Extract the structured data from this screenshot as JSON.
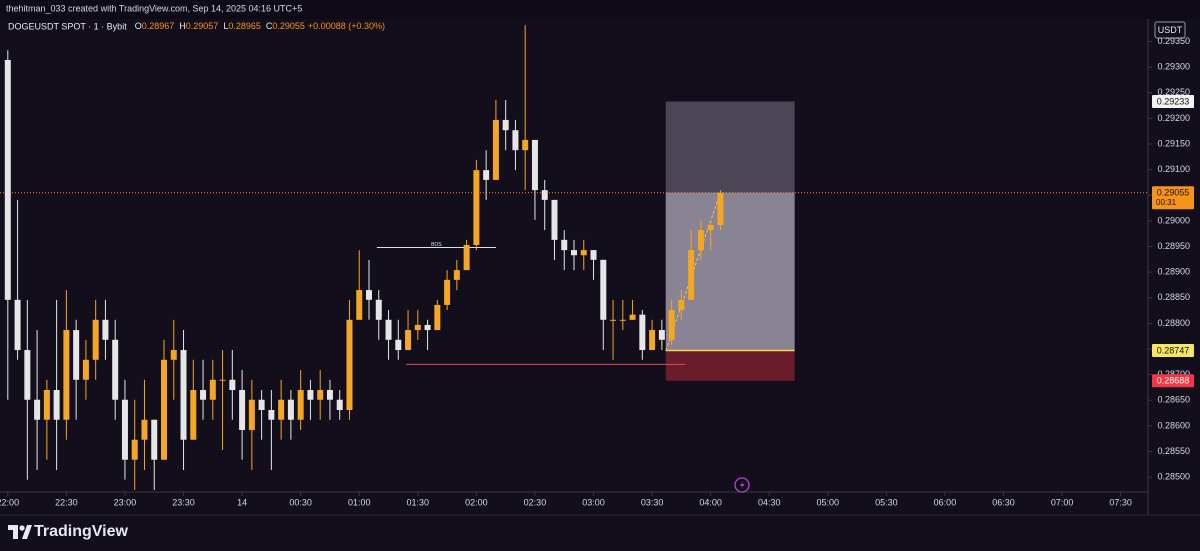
{
  "header": {
    "caption": "thehitman_033 created with TradingView.com, Sep 14, 2025 04:16 UTC+5"
  },
  "chart_data": {
    "type": "candlestick",
    "title": "DOGEUSDT SPOT · 1 · Bybit",
    "ohlc_legend": [
      {
        "label": "O",
        "value": 0.28967
      },
      {
        "label": "H",
        "value": 0.29057
      },
      {
        "label": "L",
        "value": 0.28965
      },
      {
        "label": "C",
        "value": 0.29055
      }
    ],
    "change": "+0.00088 (+0.30%)",
    "currency": "USDT",
    "up_color": "#f5a623",
    "down_color": "#e6e6e6",
    "x": [
      0,
      5,
      10,
      15,
      20,
      25,
      30,
      35,
      40,
      45,
      50,
      55,
      60,
      65,
      70,
      75,
      80,
      85,
      90,
      95,
      100,
      105,
      110,
      115,
      120,
      125,
      130,
      135,
      140,
      145,
      150,
      155,
      160,
      165,
      170,
      175,
      180,
      185,
      190,
      195,
      200,
      205,
      210,
      215,
      220,
      225,
      230,
      235,
      240,
      245,
      250,
      255,
      260,
      265,
      270,
      275,
      280,
      285,
      290,
      295,
      300,
      305,
      310,
      315,
      320,
      325,
      330,
      335,
      340,
      345,
      350,
      355,
      360,
      365
    ],
    "open": [
      0.29314,
      0.28846,
      0.28748,
      0.28651,
      0.28612,
      0.2867,
      0.28612,
      0.28787,
      0.2869,
      0.28729,
      0.28807,
      0.28768,
      0.28651,
      0.28534,
      0.28573,
      0.28612,
      0.28534,
      0.28729,
      0.28748,
      0.28573,
      0.2867,
      0.28651,
      0.2869,
      0.2869,
      0.2867,
      0.28592,
      0.28651,
      0.28631,
      0.28612,
      0.28651,
      0.28612,
      0.2867,
      0.28651,
      0.2867,
      0.28651,
      0.28631,
      0.28807,
      0.28865,
      0.28846,
      0.28807,
      0.28768,
      0.28748,
      0.28787,
      0.28797,
      0.28787,
      0.28836,
      0.28885,
      0.28904,
      0.28953,
      0.29099,
      0.2908,
      0.29197,
      0.29177,
      0.29138,
      0.29158,
      0.2906,
      0.29041,
      0.28963,
      0.28943,
      0.28933,
      0.28943,
      0.28924,
      0.28807,
      0.28807,
      0.28807,
      0.28817,
      0.28748,
      0.28787,
      0.28768,
      0.28826,
      0.28846,
      0.28943,
      0.28982,
      0.28992
    ],
    "high": [
      0.29333,
      0.29041,
      0.28846,
      0.28787,
      0.2869,
      0.28846,
      0.28865,
      0.28807,
      0.28768,
      0.28846,
      0.28846,
      0.28807,
      0.2869,
      0.28651,
      0.2869,
      0.28612,
      0.28768,
      0.28807,
      0.28787,
      0.28729,
      0.28729,
      0.28729,
      0.28748,
      0.28748,
      0.28709,
      0.2869,
      0.2867,
      0.2867,
      0.2869,
      0.2867,
      0.28709,
      0.2869,
      0.28709,
      0.2869,
      0.2867,
      0.28846,
      0.28943,
      0.28924,
      0.28865,
      0.28826,
      0.28807,
      0.28826,
      0.28826,
      0.28807,
      0.28846,
      0.28904,
      0.28924,
      0.28963,
      0.29119,
      0.29138,
      0.29236,
      0.29236,
      0.29197,
      0.29382,
      0.29158,
      0.2908,
      0.29041,
      0.28982,
      0.28963,
      0.28963,
      0.28943,
      0.28924,
      0.28846,
      0.28846,
      0.28846,
      0.28826,
      0.28807,
      0.28807,
      0.28846,
      0.28865,
      0.28982,
      0.29002,
      0.29002,
      0.2906
    ],
    "low": [
      0.28651,
      0.28729,
      0.28495,
      0.28514,
      0.28534,
      0.28514,
      0.28573,
      0.28612,
      0.28651,
      0.2869,
      0.28729,
      0.28612,
      0.28495,
      0.28475,
      0.28514,
      0.28475,
      0.28534,
      0.28651,
      0.28514,
      0.28573,
      0.28612,
      0.28612,
      0.28553,
      0.28612,
      0.28534,
      0.28514,
      0.28573,
      0.28514,
      0.28573,
      0.28573,
      0.28592,
      0.28612,
      0.28612,
      0.28612,
      0.28612,
      0.28612,
      0.28807,
      0.28807,
      0.28768,
      0.28729,
      0.28729,
      0.28748,
      0.28768,
      0.28748,
      0.28787,
      0.28826,
      0.28865,
      0.28904,
      0.28943,
      0.29041,
      0.2908,
      0.29138,
      0.29099,
      0.2906,
      0.29002,
      0.28982,
      0.28924,
      0.28904,
      0.28904,
      0.28904,
      0.28885,
      0.28748,
      0.28729,
      0.28787,
      0.28807,
      0.28729,
      0.28748,
      0.28748,
      0.28758,
      0.28807,
      0.28846,
      0.28924,
      0.28943,
      0.28982
    ],
    "close": [
      0.28846,
      0.28748,
      0.28651,
      0.28612,
      0.2867,
      0.28612,
      0.28787,
      0.2869,
      0.28729,
      0.28807,
      0.28768,
      0.28651,
      0.28534,
      0.28573,
      0.28612,
      0.28534,
      0.28729,
      0.28748,
      0.28573,
      0.2867,
      0.28651,
      0.2869,
      0.2869,
      0.2867,
      0.28592,
      0.28651,
      0.28631,
      0.28612,
      0.28651,
      0.28612,
      0.2867,
      0.28651,
      0.2867,
      0.28651,
      0.28631,
      0.28807,
      0.28865,
      0.28846,
      0.28807,
      0.28768,
      0.28748,
      0.28787,
      0.28797,
      0.28787,
      0.28836,
      0.28885,
      0.28904,
      0.28953,
      0.29099,
      0.2908,
      0.29197,
      0.29177,
      0.29138,
      0.29158,
      0.2906,
      0.29041,
      0.28963,
      0.28943,
      0.28933,
      0.28943,
      0.28924,
      0.28807,
      0.28807,
      0.28807,
      0.28817,
      0.28748,
      0.28787,
      0.28768,
      0.28826,
      0.28846,
      0.28943,
      0.28982,
      0.28992,
      0.29055
    ],
    "xlim": [
      -4,
      584
    ],
    "xticks": [
      {
        "value": 0,
        "label": "22:00"
      },
      {
        "value": 30,
        "label": "22:30"
      },
      {
        "value": 60,
        "label": "23:00"
      },
      {
        "value": 90,
        "label": "23:30"
      },
      {
        "value": 120,
        "label": "14"
      },
      {
        "value": 150,
        "label": "00:30"
      },
      {
        "value": 180,
        "label": "01:00"
      },
      {
        "value": 210,
        "label": "01:30"
      },
      {
        "value": 240,
        "label": "02:00"
      },
      {
        "value": 270,
        "label": "02:30"
      },
      {
        "value": 300,
        "label": "03:00"
      },
      {
        "value": 330,
        "label": "03:30"
      },
      {
        "value": 360,
        "label": "04:00"
      },
      {
        "value": 390,
        "label": "04:30"
      },
      {
        "value": 420,
        "label": "05:00"
      },
      {
        "value": 450,
        "label": "05:30"
      },
      {
        "value": 480,
        "label": "06:00"
      },
      {
        "value": 510,
        "label": "06:30"
      },
      {
        "value": 540,
        "label": "07:00"
      },
      {
        "value": 570,
        "label": "07:30"
      }
    ],
    "ylim": [
      0.28471,
      0.29392
    ],
    "yticks": [
      {
        "value": 0.285,
        "label": "0.28500"
      },
      {
        "value": 0.2855,
        "label": "0.28550"
      },
      {
        "value": 0.286,
        "label": "0.28600"
      },
      {
        "value": 0.2865,
        "label": "0.28650"
      },
      {
        "value": 0.287,
        "label": "0.28700"
      },
      {
        "value": 0.2875,
        "label": "0.28750"
      },
      {
        "value": 0.288,
        "label": "0.28800"
      },
      {
        "value": 0.2885,
        "label": "0.28850"
      },
      {
        "value": 0.289,
        "label": "0.28900"
      },
      {
        "value": 0.2895,
        "label": "0.28950"
      },
      {
        "value": 0.29,
        "label": "0.29000"
      },
      {
        "value": 0.2905,
        "label": "0.29050"
      },
      {
        "value": 0.291,
        "label": "0.29100"
      },
      {
        "value": 0.2915,
        "label": "0.29150"
      },
      {
        "value": 0.292,
        "label": "0.29200"
      },
      {
        "value": 0.2925,
        "label": "0.29250"
      },
      {
        "value": 0.293,
        "label": "0.29300"
      },
      {
        "value": 0.2935,
        "label": "0.29350"
      }
    ],
    "current_price": {
      "value": 0.29055,
      "countdown": "00:31",
      "color": "#f7931a"
    },
    "position": {
      "x": [
        337,
        403
      ],
      "target": 0.29233,
      "entry": 0.28747,
      "stop": 0.28688
    },
    "annotations": [
      {
        "text": "BOS",
        "y": 0.28948,
        "x": [
          189,
          250
        ]
      }
    ],
    "level_line": {
      "y": 0.2872,
      "x": [
        204,
        347
      ],
      "color": "#e0474c"
    }
  },
  "footer": {
    "brand": "TradingView"
  }
}
